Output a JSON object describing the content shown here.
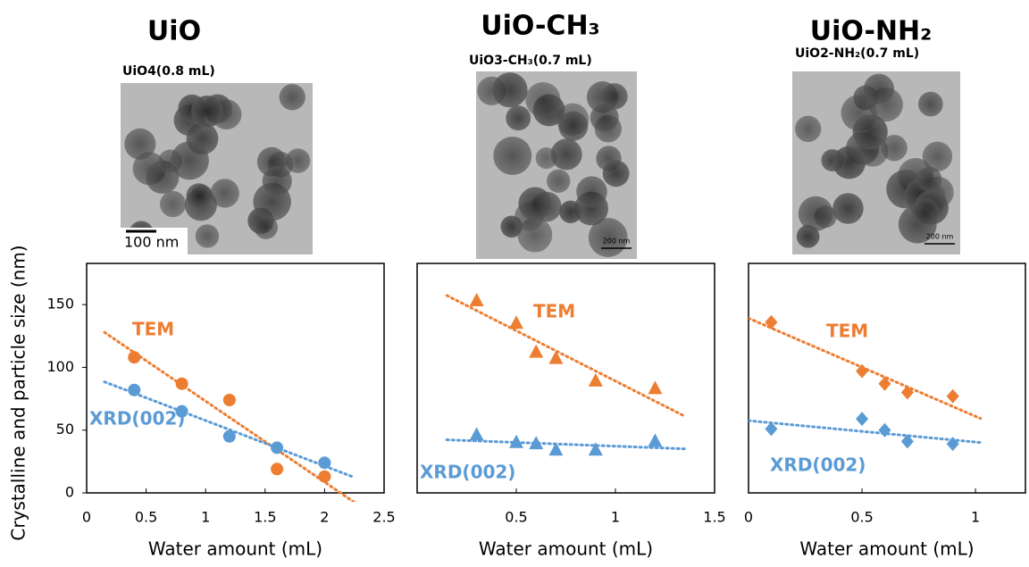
{
  "chart_data": [
    {
      "type": "scatter",
      "title": "UiO",
      "image_caption": "UiO4(0.8 mL)",
      "scale_bar_label": "100 nm",
      "xlabel": "Water amount (mL)",
      "ylabel": "Crystalline and particle size (nm)",
      "marker": "circle",
      "trendline": true,
      "xlim": [
        0,
        2.5
      ],
      "xticks": [
        0,
        0.5,
        1,
        1.5,
        2,
        2.5
      ],
      "ylim": [
        0,
        180
      ],
      "yticks": [
        0,
        50,
        100,
        150
      ],
      "series": [
        {
          "name": "TEM",
          "color": "#ed7d31",
          "x": [
            0.4,
            0.8,
            1.2,
            1.6,
            2.0
          ],
          "values": [
            108,
            87,
            74,
            19,
            13
          ]
        },
        {
          "name": "XRD(002)",
          "color": "#5b9bd5",
          "x": [
            0.4,
            0.8,
            1.2,
            1.6,
            2.0
          ],
          "values": [
            82,
            65,
            45,
            36,
            24
          ]
        }
      ]
    },
    {
      "type": "scatter",
      "title": "UiO-CH₃",
      "image_caption": "UiO3-CH₃(0.7 mL)",
      "scale_bar_label": "200 nm",
      "xlabel": "Water amount (mL)",
      "marker": "triangle",
      "trendline": true,
      "xlim": [
        0,
        1.5
      ],
      "xticks": [
        0.5,
        1,
        1.5
      ],
      "ylim": [
        0,
        180
      ],
      "series": [
        {
          "name": "TEM",
          "color": "#ed7d31",
          "x": [
            0.3,
            0.5,
            0.6,
            0.7,
            0.9,
            1.2
          ],
          "values": [
            153,
            135,
            112,
            107,
            89,
            83
          ]
        },
        {
          "name": "XRD(002)",
          "color": "#5b9bd5",
          "x": [
            0.3,
            0.5,
            0.6,
            0.7,
            0.9,
            1.2
          ],
          "values": [
            46,
            40,
            39,
            34,
            34,
            41
          ]
        }
      ]
    },
    {
      "type": "scatter",
      "title": "UiO-NH₂",
      "image_caption": "UiO2-NH₂(0.7 mL)",
      "scale_bar_label": "200 nm",
      "xlabel": "Water amount (mL)",
      "marker": "diamond",
      "trendline": true,
      "xlim": [
        0,
        1.22
      ],
      "xticks": [
        0,
        0.5,
        1
      ],
      "ylim": [
        0,
        180
      ],
      "series": [
        {
          "name": "TEM",
          "color": "#ed7d31",
          "x": [
            0.1,
            0.5,
            0.6,
            0.7,
            0.9
          ],
          "values": [
            136,
            97,
            87,
            80,
            77
          ]
        },
        {
          "name": "XRD(002)",
          "color": "#5b9bd5",
          "x": [
            0.1,
            0.5,
            0.6,
            0.7,
            0.9
          ],
          "values": [
            51,
            59,
            50,
            41,
            39
          ]
        }
      ]
    }
  ]
}
